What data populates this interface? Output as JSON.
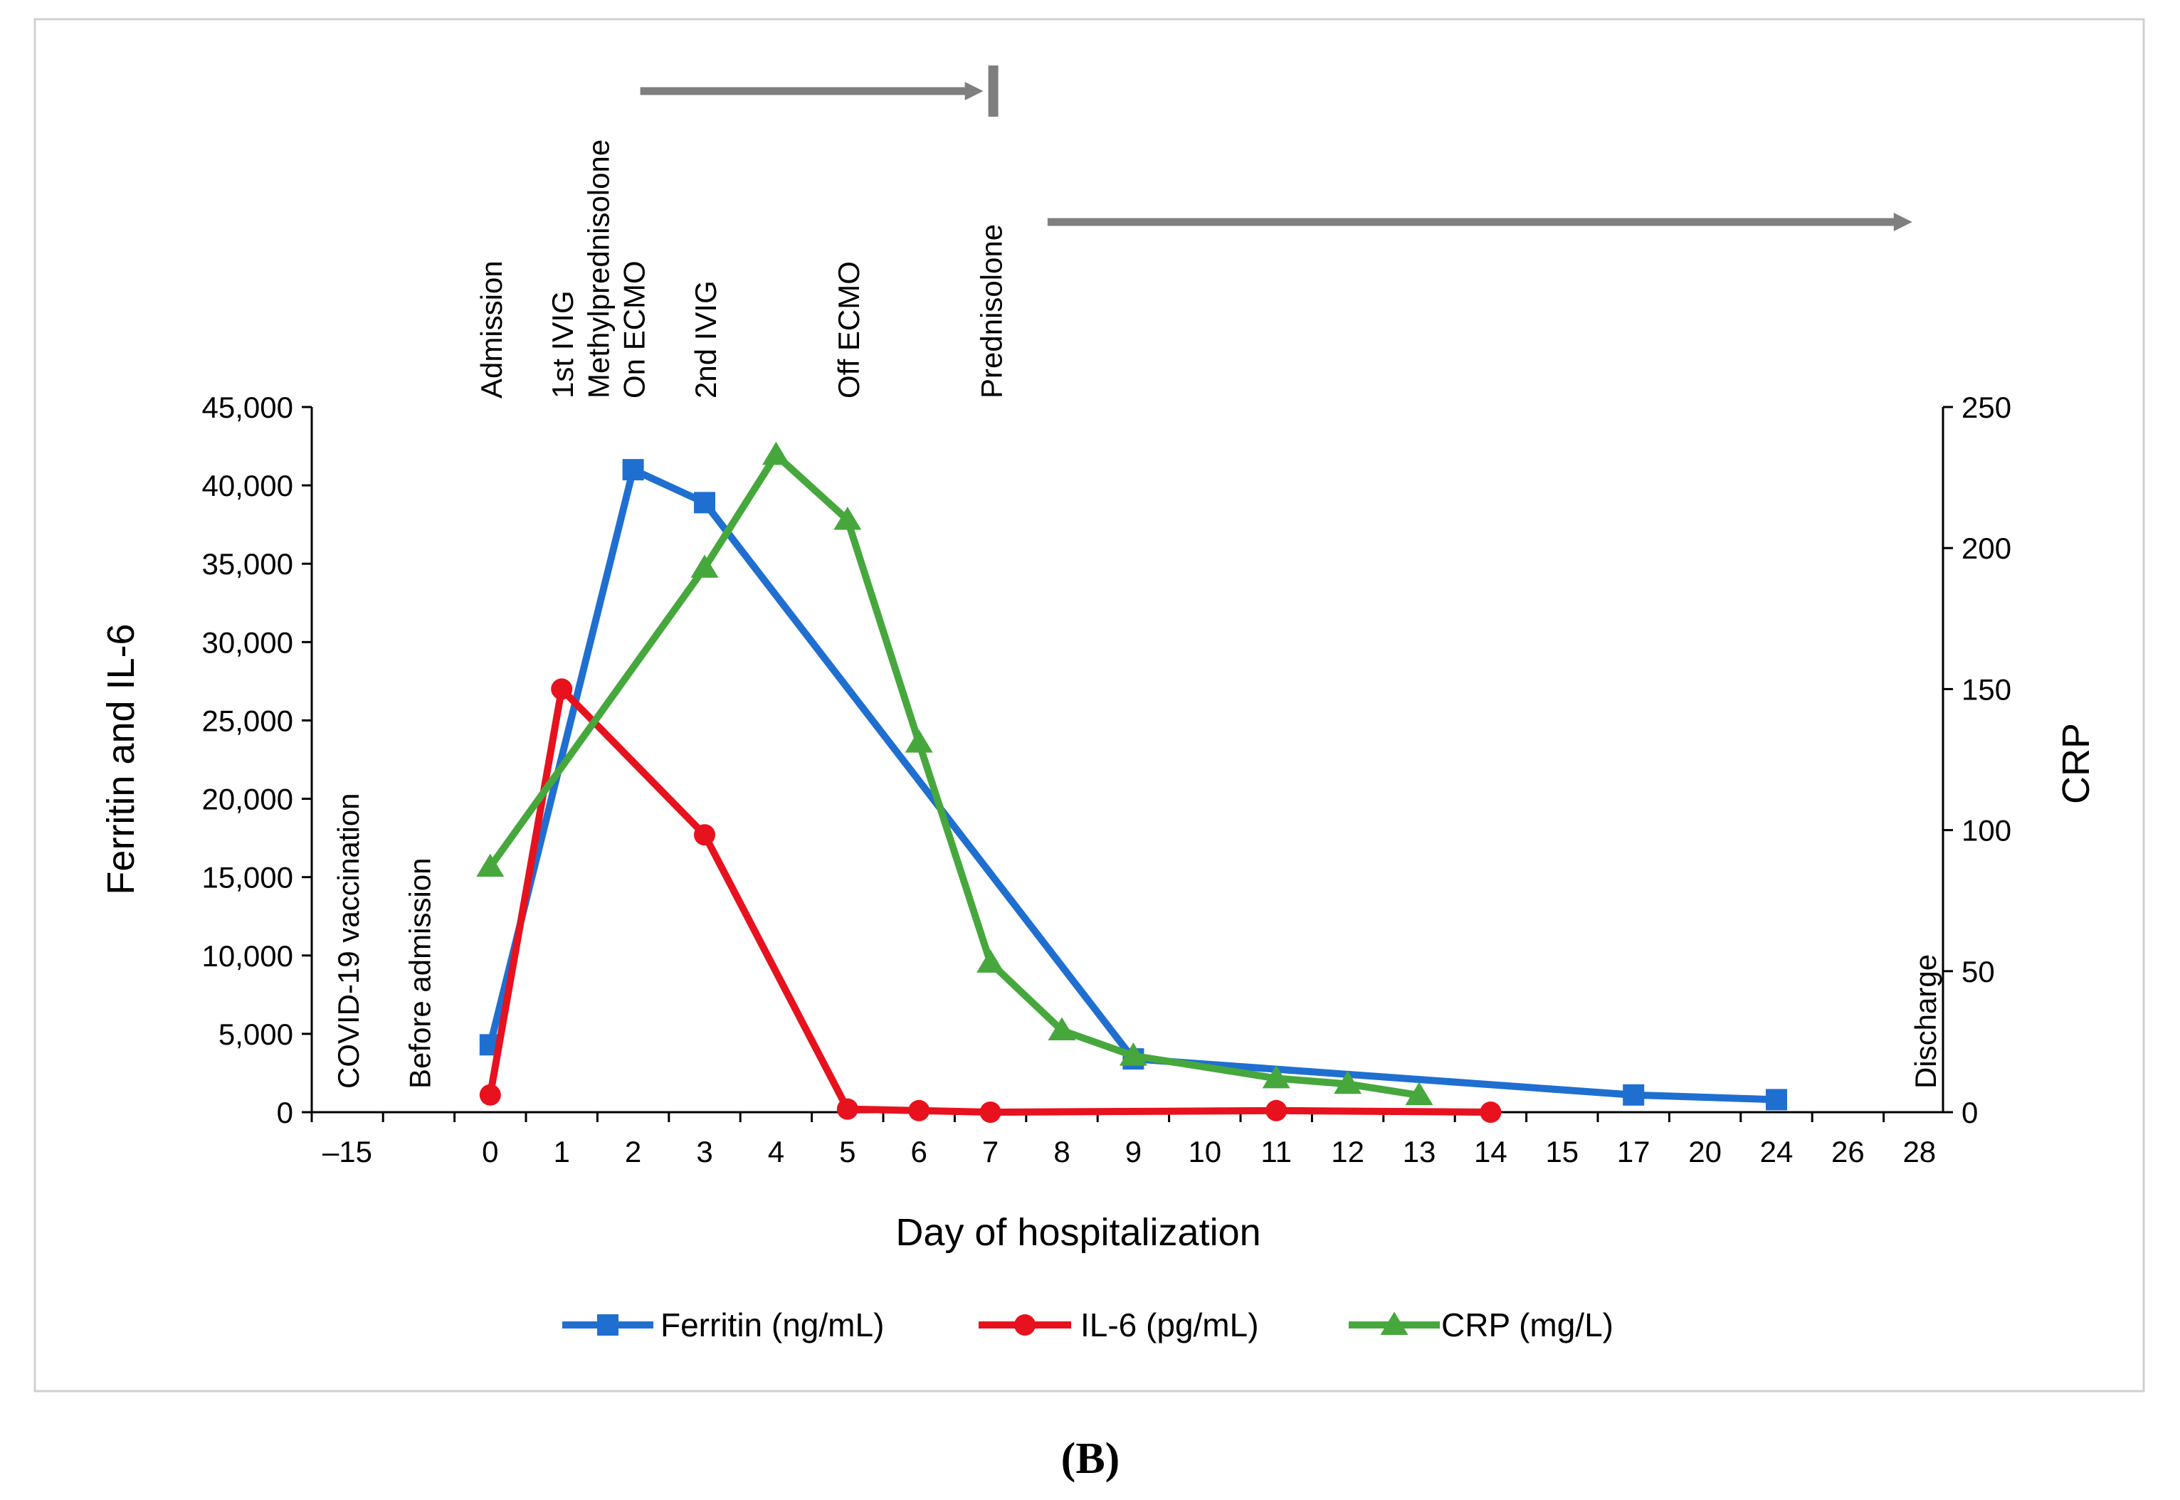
{
  "panel_label": "(B)",
  "chart_data": {
    "type": "line",
    "title": "",
    "xlabel": "Day of hospitalization",
    "ylabel": "Ferritin and IL-6",
    "y2label": "CRP",
    "categories": [
      "–15",
      "0",
      "1",
      "2",
      "3",
      "4",
      "5",
      "6",
      "7",
      "8",
      "9",
      "10",
      "11",
      "12",
      "13",
      "14",
      "15",
      "17",
      "20",
      "24",
      "26",
      "28"
    ],
    "ylim": [
      0,
      45000
    ],
    "y2lim": [
      0,
      250
    ],
    "yticks": [
      "0",
      "5,000",
      "10,000",
      "15,000",
      "20,000",
      "25,000",
      "30,000",
      "35,000",
      "40,000",
      "45,000"
    ],
    "y2ticks": [
      "0",
      "50",
      "100",
      "150",
      "200",
      "250"
    ],
    "series": [
      {
        "name": "Ferritin (ng/mL)",
        "axis": "left",
        "color": "#1f6fd1",
        "marker": "square",
        "points": [
          [
            "0",
            4300
          ],
          [
            "2",
            41000
          ],
          [
            "3",
            38900
          ],
          [
            "9",
            3400
          ],
          [
            "17",
            1100
          ],
          [
            "24",
            800
          ]
        ]
      },
      {
        "name": "IL-6 (pg/mL)",
        "axis": "left",
        "color": "#e8111e",
        "marker": "circle",
        "points": [
          [
            "0",
            1100
          ],
          [
            "1",
            27000
          ],
          [
            "3",
            17700
          ],
          [
            "5",
            200
          ],
          [
            "6",
            100
          ],
          [
            "7",
            0
          ],
          [
            "11",
            100
          ],
          [
            "14",
            0
          ]
        ]
      },
      {
        "name": "CRP (mg/L)",
        "axis": "right",
        "color": "#46a83c",
        "marker": "triangle",
        "points": [
          [
            "0",
            87
          ],
          [
            "3",
            193
          ],
          [
            "4",
            233
          ],
          [
            "5",
            210
          ],
          [
            "6",
            131
          ],
          [
            "7",
            53
          ],
          [
            "8",
            29
          ],
          [
            "9",
            20
          ],
          [
            "11",
            12
          ],
          [
            "12",
            10
          ],
          [
            "13",
            6
          ]
        ]
      }
    ],
    "events_top": [
      {
        "at": "0",
        "label": "Admission"
      },
      {
        "at": "1",
        "label": "1st IVIG"
      },
      {
        "at": "1.5",
        "label": "Methylprednisolone"
      },
      {
        "at": "2",
        "label": "On ECMO"
      },
      {
        "at": "3",
        "label": "2nd IVIG"
      },
      {
        "at": "5",
        "label": "Off ECMO"
      },
      {
        "at": "7",
        "label": "Prednisolone"
      }
    ],
    "events_inside": [
      {
        "at": "–15",
        "label": "COVID-19 vaccination"
      },
      {
        "at": "before",
        "label": "Before admission"
      },
      {
        "at": "28",
        "label": "Discharge"
      }
    ],
    "treatment_bars": [
      {
        "name": "Methylprednisolone",
        "from": "2",
        "to": "7"
      },
      {
        "name": "Prednisolone",
        "from": "7.7",
        "to": "28"
      }
    ]
  }
}
